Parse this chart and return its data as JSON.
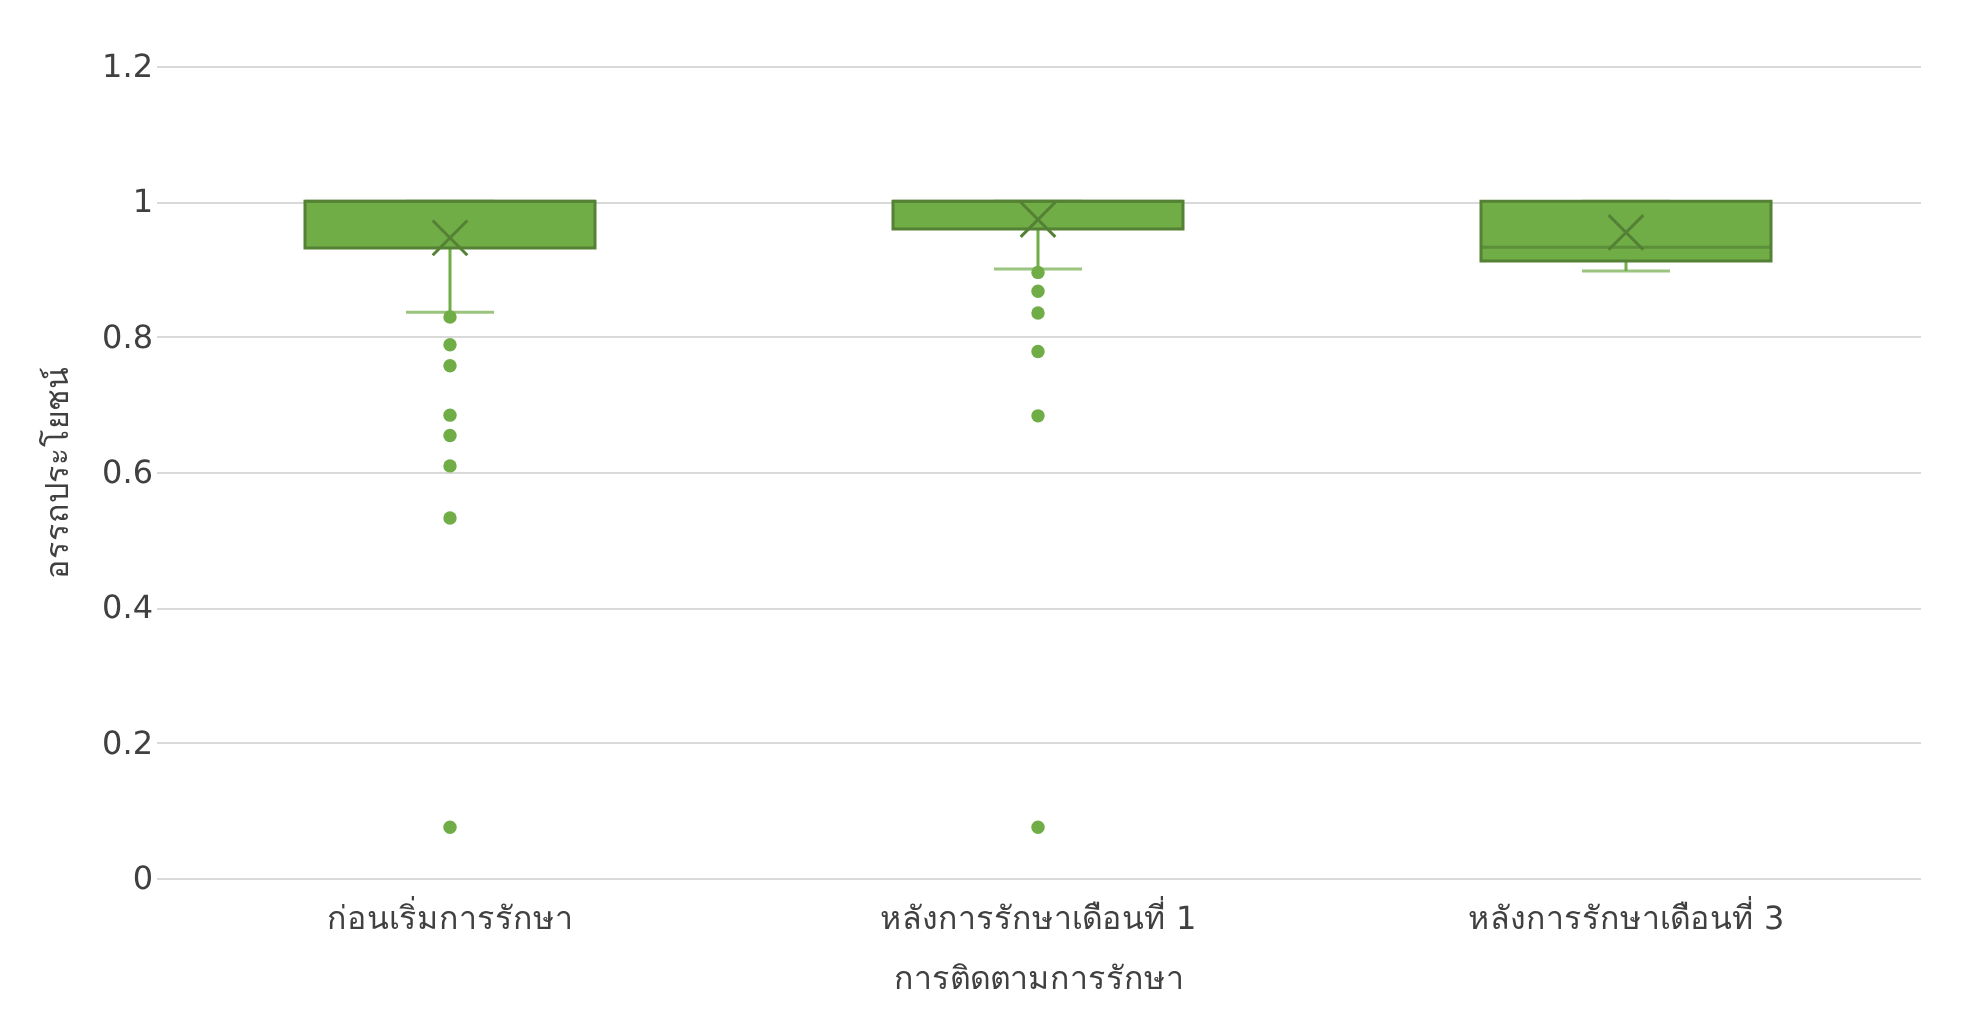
{
  "chart_data": {
    "type": "box",
    "xlabel": "การติดตามการรักษา",
    "ylabel": "อรรถประโยชน์",
    "categories": [
      "ก่อนเริ่มการรักษา",
      "หลังการรักษาเดือนที่ 1",
      "หลังการรักษาเดือนที่ 3"
    ],
    "series": [
      {
        "color": "#70ad47",
        "boxes": [
          {
            "low": 0.836,
            "q1": 0.931,
            "median": 1.0,
            "q3": 1.0,
            "high": 1.0,
            "mean": 0.946,
            "outliers": [
              0.829,
              0.788,
              0.757,
              0.684,
              0.654,
              0.609,
              0.532,
              0.075
            ]
          },
          {
            "low": 0.9,
            "q1": 0.959,
            "median": 1.0,
            "q3": 1.0,
            "high": 1.0,
            "mean": 0.973,
            "outliers": [
              0.895,
              0.867,
              0.835,
              0.778,
              0.683,
              0.075
            ]
          },
          {
            "low": 0.897,
            "q1": 0.912,
            "median": 0.932,
            "q3": 1.0,
            "high": 1.0,
            "mean": 0.954
          }
        ]
      }
    ],
    "ylim": [
      0,
      1.2
    ],
    "yticks": [
      0,
      0.2,
      0.4,
      0.6,
      0.8,
      1,
      1.2
    ],
    "grid": "y",
    "marker": "circle"
  }
}
